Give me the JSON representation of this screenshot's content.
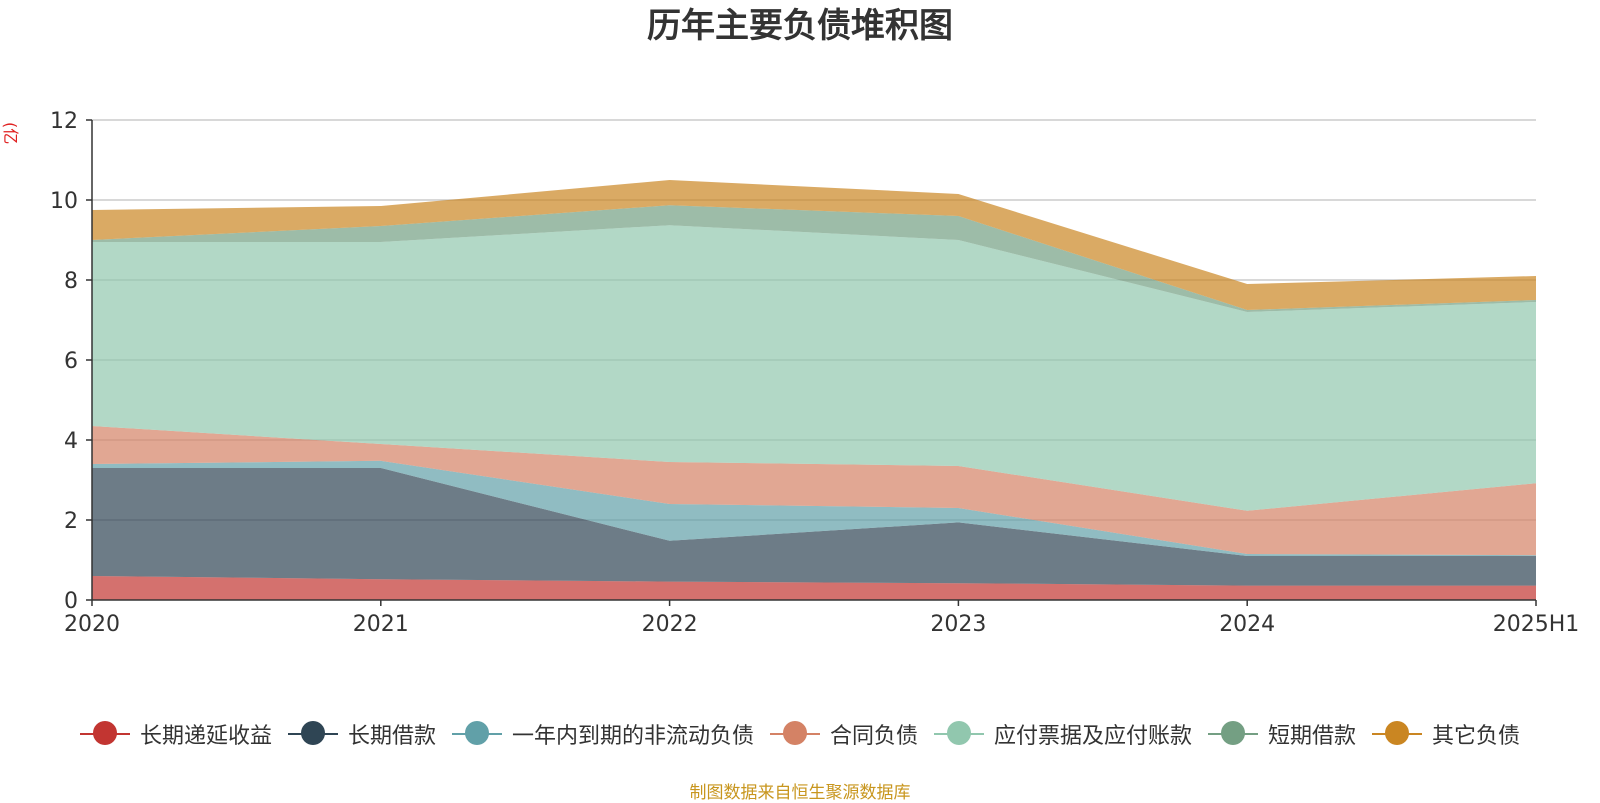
{
  "chart_data": {
    "type": "area",
    "stacked": true,
    "title": "历年主要负债堆积图",
    "unit_label": "(亿元)",
    "categories": [
      "2020",
      "2021",
      "2022",
      "2023",
      "2024",
      "2025H1"
    ],
    "ylim": [
      0,
      12
    ],
    "yticks": [
      0,
      2,
      4,
      6,
      8,
      10,
      12
    ],
    "grid": true,
    "legend_position": "bottom",
    "series": [
      {
        "name": "长期递延收益",
        "color": "#c23531",
        "values": [
          0.6,
          0.52,
          0.46,
          0.42,
          0.36,
          0.36
        ]
      },
      {
        "name": "长期借款",
        "color": "#2f4554",
        "values": [
          2.7,
          2.78,
          1.02,
          1.52,
          0.74,
          0.74
        ]
      },
      {
        "name": "一年内到期的非流动负债",
        "color": "#61a0a8",
        "values": [
          0.1,
          0.18,
          0.92,
          0.36,
          0.05,
          0.02
        ]
      },
      {
        "name": "合同负债",
        "color": "#d48265",
        "values": [
          0.95,
          0.42,
          1.05,
          1.05,
          1.08,
          1.8
        ]
      },
      {
        "name": "应付票据及应付账款",
        "color": "#91c7ae",
        "values": [
          4.6,
          5.05,
          5.92,
          5.65,
          4.97,
          4.53
        ]
      },
      {
        "name": "短期借款",
        "color": "#749f83",
        "values": [
          0.05,
          0.4,
          0.5,
          0.6,
          0.05,
          0.05
        ]
      },
      {
        "name": "其它负债",
        "color": "#ca8622",
        "values": [
          0.75,
          0.5,
          0.63,
          0.55,
          0.65,
          0.6
        ]
      }
    ]
  },
  "footer": {
    "source": "制图数据来自恒生聚源数据库"
  }
}
